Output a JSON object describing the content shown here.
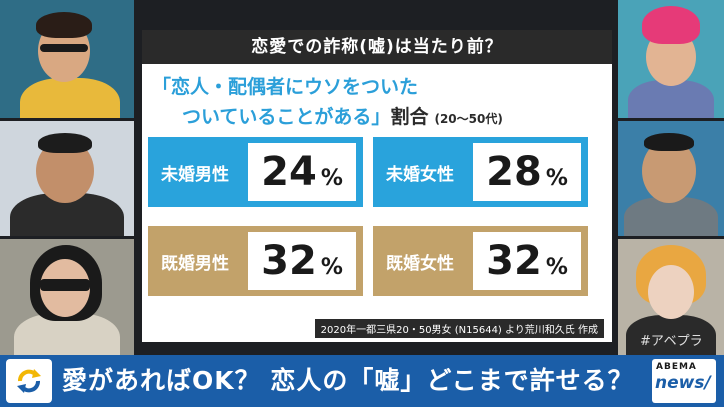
{
  "panel": {
    "title": "恋愛での詐称(嘘)は当たり前？",
    "subtitle_line1": "「恋人・配偶者にウソをついた",
    "subtitle_line2": "ついていることがある」",
    "subtitle_suffix": "割合",
    "subtitle_range": "(20〜50代)",
    "source": "2020年一都三県20・50男女 (N15644) より荒川和久氏 作成",
    "stats": [
      {
        "label": "未婚男性",
        "value": "24",
        "unit": "%",
        "color": "#29a3dc"
      },
      {
        "label": "未婚女性",
        "value": "28",
        "unit": "%",
        "color": "#29a3dc"
      },
      {
        "label": "既婚男性",
        "value": "32",
        "unit": "%",
        "color": "#c2a26a"
      },
      {
        "label": "既婚女性",
        "value": "32",
        "unit": "%",
        "color": "#c2a26a"
      }
    ]
  },
  "bottom_bar": {
    "headline": "愛があればOK？ 恋人の「嘘」どこまで許せる？",
    "logo_top": "ABEMA",
    "logo_bottom": "news/"
  },
  "watermark": "#アベプラ",
  "icons": {
    "badge": "refresh-arrows-icon"
  },
  "colors": {
    "accent_blue": "#29a3dc",
    "accent_gold": "#c2a26a",
    "bar_blue": "#1b5ea8"
  }
}
